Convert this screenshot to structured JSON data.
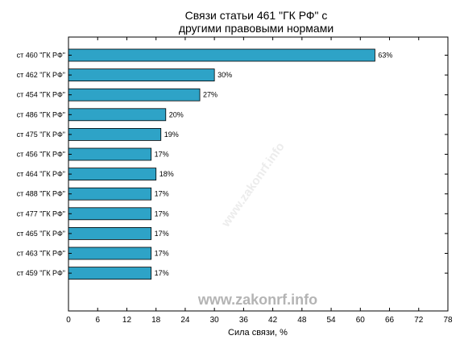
{
  "chart_data": {
    "type": "bar",
    "orientation": "horizontal",
    "title_lines": [
      "Связи статьи 461 \"ГК РФ\" с",
      "другими правовыми нормами"
    ],
    "xlabel": "Сила связи, %",
    "categories": [
      "ст 460 \"ГК РФ\"",
      "ст 462 \"ГК РФ\"",
      "ст 454 \"ГК РФ\"",
      "ст 486 \"ГК РФ\"",
      "ст 475 \"ГК РФ\"",
      "ст 456 \"ГК РФ\"",
      "ст 464 \"ГК РФ\"",
      "ст 488 \"ГК РФ\"",
      "ст 477 \"ГК РФ\"",
      "ст 465 \"ГК РФ\"",
      "ст 463 \"ГК РФ\"",
      "ст 459 \"ГК РФ\""
    ],
    "values": [
      63,
      30,
      27,
      20,
      19,
      17,
      18,
      17,
      17,
      17,
      17,
      17
    ],
    "value_labels": [
      "63%",
      "30%",
      "27%",
      "20%",
      "19%",
      "17%",
      "18%",
      "17%",
      "17%",
      "17%",
      "17%",
      "17%"
    ],
    "xlim": [
      0,
      78
    ],
    "xticks": [
      0,
      6,
      12,
      18,
      24,
      30,
      36,
      42,
      48,
      54,
      60,
      66,
      72,
      78
    ],
    "grid": false,
    "bar_color": "#2ea3c7"
  },
  "watermark": {
    "text": "www.zakonrf.info"
  }
}
